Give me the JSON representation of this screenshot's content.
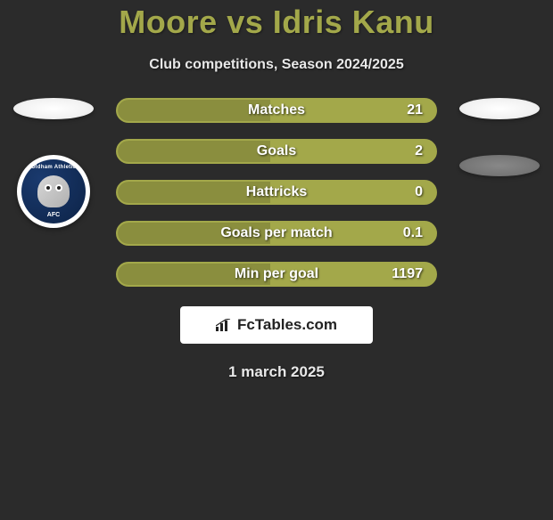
{
  "title": "Moore vs Idris Kanu",
  "subtitle": "Club competitions, Season 2024/2025",
  "left_badge": {
    "top_text": "Oldham Athletic",
    "bottom_text": "AFC"
  },
  "stats": [
    {
      "label": "Matches",
      "value": "21",
      "fill_pct": 48
    },
    {
      "label": "Goals",
      "value": "2",
      "fill_pct": 48
    },
    {
      "label": "Hattricks",
      "value": "0",
      "fill_pct": 48
    },
    {
      "label": "Goals per match",
      "value": "0.1",
      "fill_pct": 48
    },
    {
      "label": "Min per goal",
      "value": "1197",
      "fill_pct": 48
    }
  ],
  "brand": "FcTables.com",
  "date": "1 march 2025",
  "colors": {
    "background": "#2b2b2b",
    "accent": "#a3a84a",
    "accent_dark": "#8a8e3e",
    "text": "#ffffff",
    "brand_text": "#222222"
  }
}
